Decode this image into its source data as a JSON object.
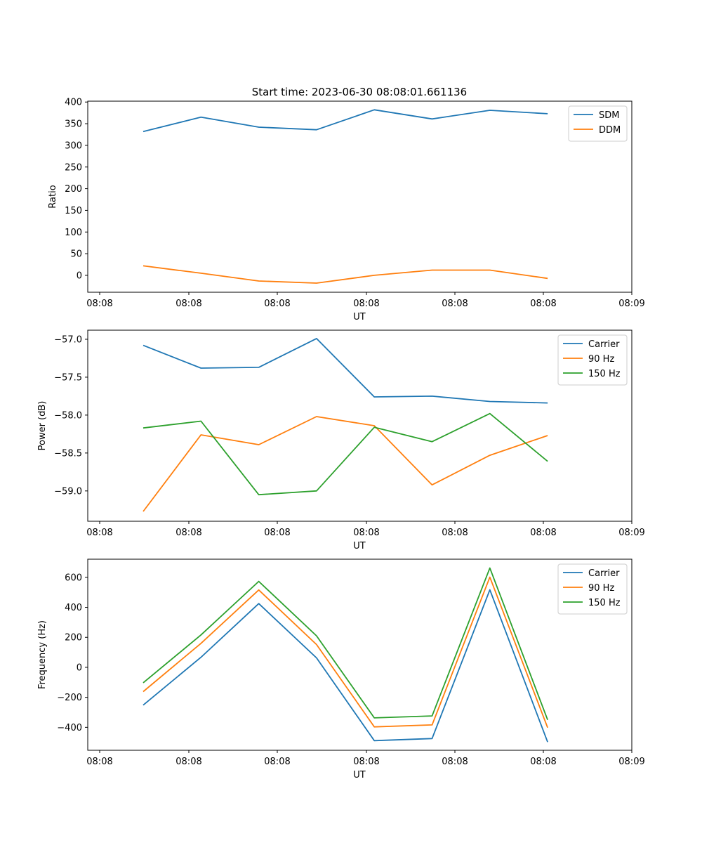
{
  "figure": {
    "title": "Start time: 2023-06-30 08:08:01.661136"
  },
  "chart_data": [
    {
      "type": "line",
      "title": "Start time: 2023-06-30 08:08:01.661136",
      "xlabel": "UT",
      "ylabel": "Ratio",
      "x_ticks": [
        "08:08",
        "08:08",
        "08:08",
        "08:08",
        "08:08",
        "08:08",
        "08:09"
      ],
      "y_ticks": [
        0,
        50,
        100,
        150,
        200,
        250,
        300,
        350,
        400
      ],
      "ylim": [
        -39,
        402
      ],
      "grid": false,
      "legend_position": "top-right",
      "x": [
        1,
        2,
        3,
        4,
        5,
        6,
        7,
        8
      ],
      "series": [
        {
          "name": "SDM",
          "color": "#1f77b4",
          "values": [
            332,
            365,
            342,
            336,
            382,
            361,
            381,
            373
          ]
        },
        {
          "name": "DDM",
          "color": "#ff7f0e",
          "values": [
            22,
            5,
            -13,
            -18,
            0,
            12,
            12,
            -7
          ]
        }
      ]
    },
    {
      "type": "line",
      "title": "",
      "xlabel": "UT",
      "ylabel": "Power (dB)",
      "x_ticks": [
        "08:08",
        "08:08",
        "08:08",
        "08:08",
        "08:08",
        "08:08",
        "08:09"
      ],
      "y_ticks": [
        -57.0,
        -57.5,
        -58.0,
        -58.5,
        -59.0
      ],
      "ylim": [
        -59.4,
        -56.88
      ],
      "grid": false,
      "legend_position": "top-right",
      "x": [
        1,
        2,
        3,
        4,
        5,
        6,
        7,
        8
      ],
      "series": [
        {
          "name": "Carrier",
          "color": "#1f77b4",
          "values": [
            -57.08,
            -57.38,
            -57.37,
            -56.99,
            -57.76,
            -57.75,
            -57.82,
            -57.84
          ]
        },
        {
          "name": "90 Hz",
          "color": "#ff7f0e",
          "values": [
            -59.27,
            -58.26,
            -58.39,
            -58.02,
            -58.14,
            -58.92,
            -58.53,
            -58.27
          ]
        },
        {
          "name": "150 Hz",
          "color": "#2ca02c",
          "values": [
            -58.17,
            -58.08,
            -59.05,
            -59.0,
            -58.16,
            -58.35,
            -57.98,
            -58.61
          ]
        }
      ]
    },
    {
      "type": "line",
      "title": "",
      "xlabel": "UT",
      "ylabel": "Frequency (Hz)",
      "x_ticks": [
        "08:08",
        "08:08",
        "08:08",
        "08:08",
        "08:08",
        "08:08",
        "08:09"
      ],
      "y_ticks": [
        -400,
        -200,
        0,
        200,
        400,
        600
      ],
      "ylim": [
        -553,
        721
      ],
      "grid": false,
      "legend_position": "top-right",
      "x": [
        1,
        2,
        3,
        4,
        5,
        6,
        7,
        8
      ],
      "series": [
        {
          "name": "Carrier",
          "color": "#1f77b4",
          "values": [
            -252,
            67,
            425,
            63,
            -489,
            -475,
            517,
            -498
          ]
        },
        {
          "name": "90 Hz",
          "color": "#ff7f0e",
          "values": [
            -162,
            160,
            516,
            152,
            -397,
            -384,
            601,
            -402
          ]
        },
        {
          "name": "150 Hz",
          "color": "#2ca02c",
          "values": [
            -103,
            216,
            573,
            210,
            -337,
            -324,
            662,
            -350
          ]
        }
      ]
    }
  ]
}
